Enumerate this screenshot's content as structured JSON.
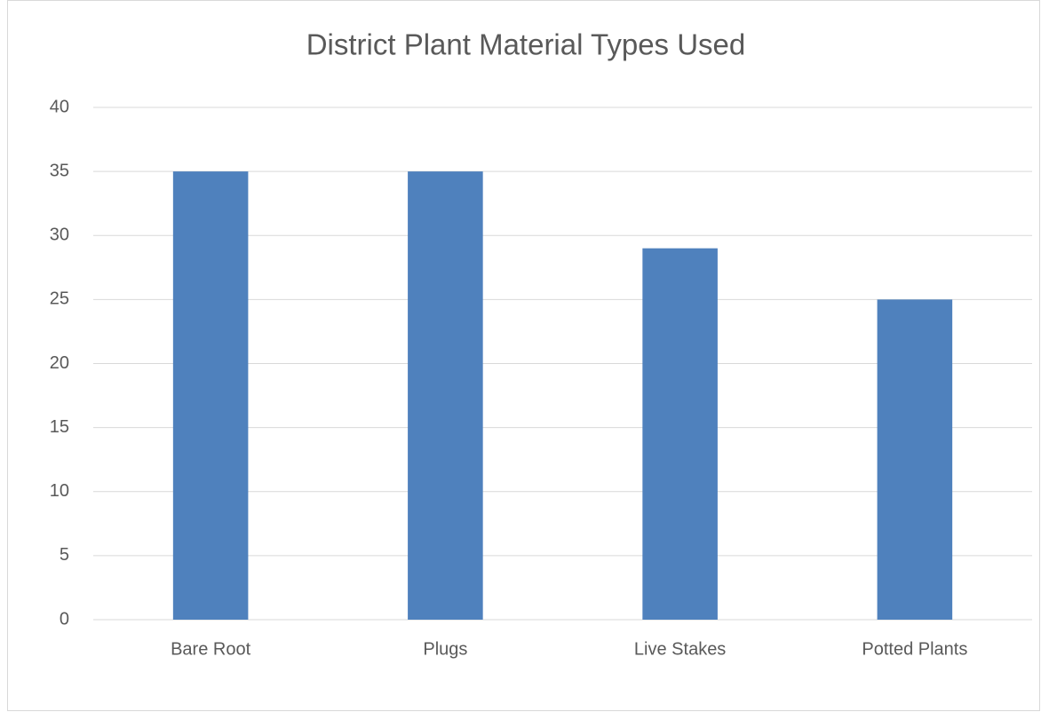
{
  "chart_data": {
    "type": "bar",
    "title": "District Plant Material Types Used",
    "categories": [
      "Bare Root",
      "Plugs",
      "Live Stakes",
      "Potted Plants"
    ],
    "values": [
      35,
      35,
      29,
      25
    ],
    "color": "#4f81bd",
    "ylim": [
      0,
      40
    ],
    "yticks": [
      0,
      5,
      10,
      15,
      20,
      25,
      30,
      35,
      40
    ],
    "grid": true
  }
}
